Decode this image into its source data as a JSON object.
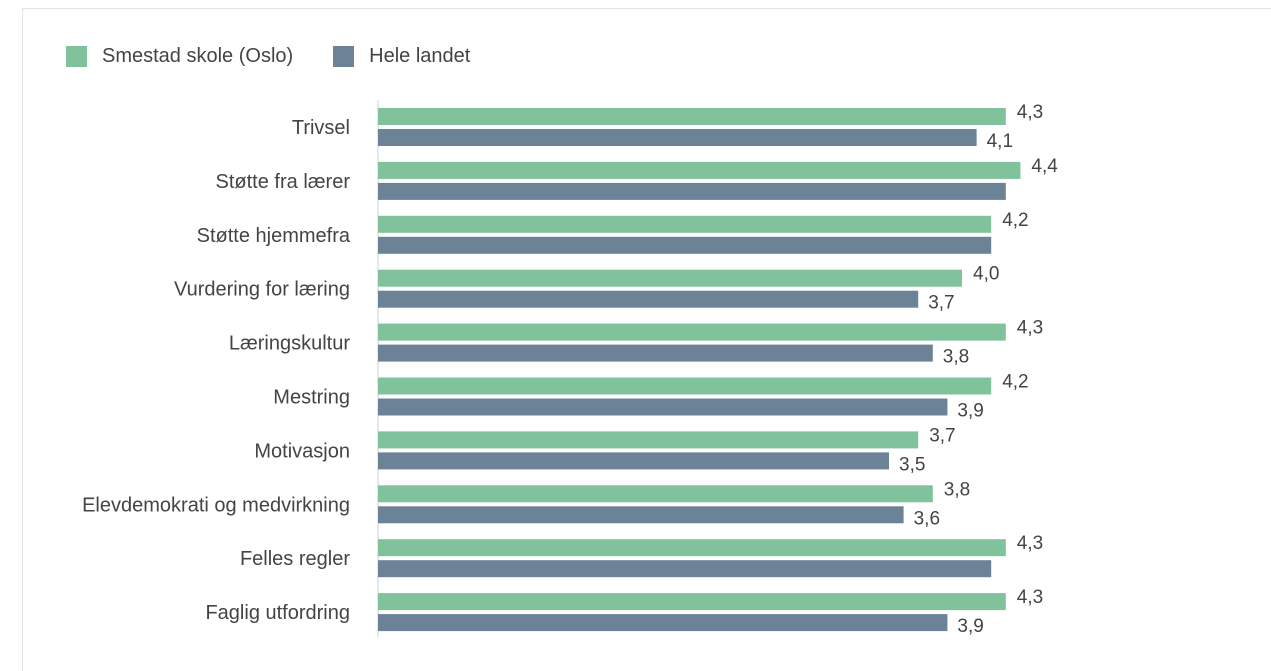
{
  "chart_data": {
    "type": "bar",
    "orientation": "horizontal",
    "categories": [
      "Trivsel",
      "Støtte fra lærer",
      "Støtte hjemmefra",
      "Vurdering for læring",
      "Læringskultur",
      "Mestring",
      "Motivasjon",
      "Elevdemokrati og medvirkning",
      "Felles regler",
      "Faglig utfordring"
    ],
    "series": [
      {
        "name": "Smestad skole (Oslo)",
        "color": "#7fc29b",
        "values": [
          4.3,
          4.4,
          4.2,
          4.0,
          4.3,
          4.2,
          3.7,
          3.8,
          4.3,
          4.3
        ],
        "labels": [
          "4,3",
          "4,4",
          "4,2",
          "4,0",
          "4,3",
          "4,2",
          "3,7",
          "3,8",
          "4,3",
          "4,3"
        ]
      },
      {
        "name": "Hele landet",
        "color": "#6b8297",
        "values": [
          4.1,
          4.3,
          4.2,
          3.7,
          3.8,
          3.9,
          3.5,
          3.6,
          4.2,
          3.9
        ],
        "labels": [
          "4,1",
          "",
          "",
          "3,7",
          "3,8",
          "3,9",
          "3,5",
          "3,6",
          "",
          "3,9"
        ]
      }
    ],
    "xlim": [
      0,
      5
    ],
    "legend": "top-left",
    "grid": false,
    "title": "",
    "xlabel": "",
    "ylabel": ""
  }
}
